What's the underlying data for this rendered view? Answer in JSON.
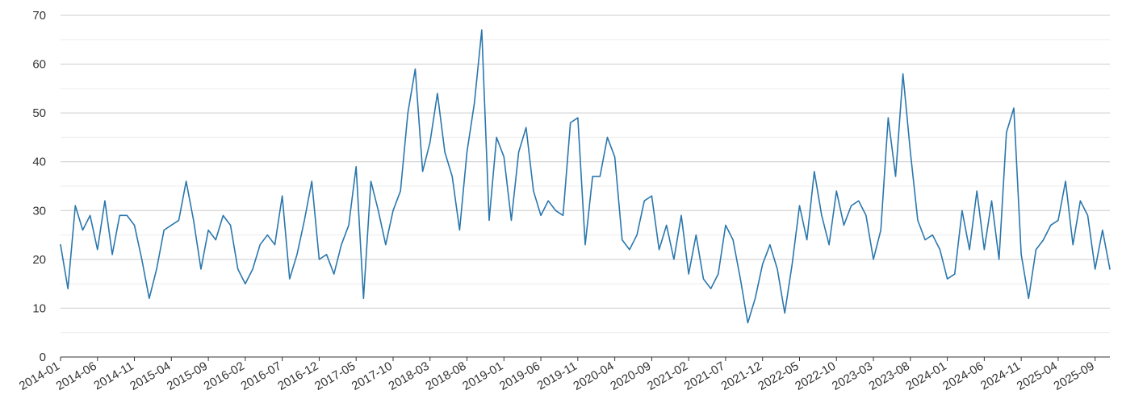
{
  "chart_data": {
    "type": "line",
    "title": "",
    "xlabel": "",
    "ylabel": "",
    "ylim": [
      0,
      70
    ],
    "y_ticks": [
      "0",
      "10",
      "20",
      "30",
      "40",
      "50",
      "60",
      "70"
    ],
    "x_tick_labels": [
      "2014-01",
      "2014-06",
      "2014-11",
      "2015-04",
      "2015-09",
      "2016-02",
      "2016-07",
      "2016-12",
      "2017-05",
      "2017-10",
      "2018-03",
      "2018-08",
      "2019-01",
      "2019-06",
      "2019-11",
      "2020-04",
      "2020-09",
      "2021-02",
      "2021-07",
      "2021-12",
      "2022-05",
      "2022-10",
      "2023-03",
      "2023-08",
      "2024-01",
      "2024-06",
      "2024-11",
      "2025-04",
      "2025-09"
    ],
    "grid": true,
    "legend": "none",
    "line_color": "#2a77ad",
    "series": [
      {
        "start": "2014-01",
        "frequency": "monthly",
        "values": [
          23,
          14,
          31,
          26,
          29,
          22,
          32,
          21,
          29,
          29,
          27,
          20,
          12,
          18,
          26,
          27,
          28,
          36,
          28,
          18,
          26,
          24,
          29,
          27,
          18,
          15,
          18,
          23,
          25,
          23,
          33,
          16,
          21,
          28,
          36,
          20,
          21,
          17,
          23,
          27,
          39,
          12,
          36,
          30,
          23,
          30,
          34,
          50,
          59,
          38,
          44,
          54,
          42,
          37,
          26,
          42,
          52,
          67,
          28,
          45,
          41,
          28,
          42,
          47,
          34,
          29,
          32,
          30,
          29,
          48,
          49,
          23,
          37,
          37,
          45,
          41,
          24,
          22,
          25,
          32,
          33,
          22,
          27,
          20,
          29,
          17,
          25,
          16,
          14,
          17,
          27,
          24,
          16,
          7,
          12,
          19,
          23,
          18,
          9,
          19,
          31,
          24,
          38,
          29,
          23,
          34,
          27,
          31,
          32,
          29,
          20,
          26,
          49,
          37,
          58,
          42,
          28,
          24,
          25,
          22,
          16,
          17,
          30,
          22,
          34,
          22,
          32,
          20,
          46,
          51,
          21,
          12,
          22,
          24,
          27,
          28,
          36,
          23,
          32,
          29,
          18,
          26,
          18
        ]
      }
    ]
  }
}
